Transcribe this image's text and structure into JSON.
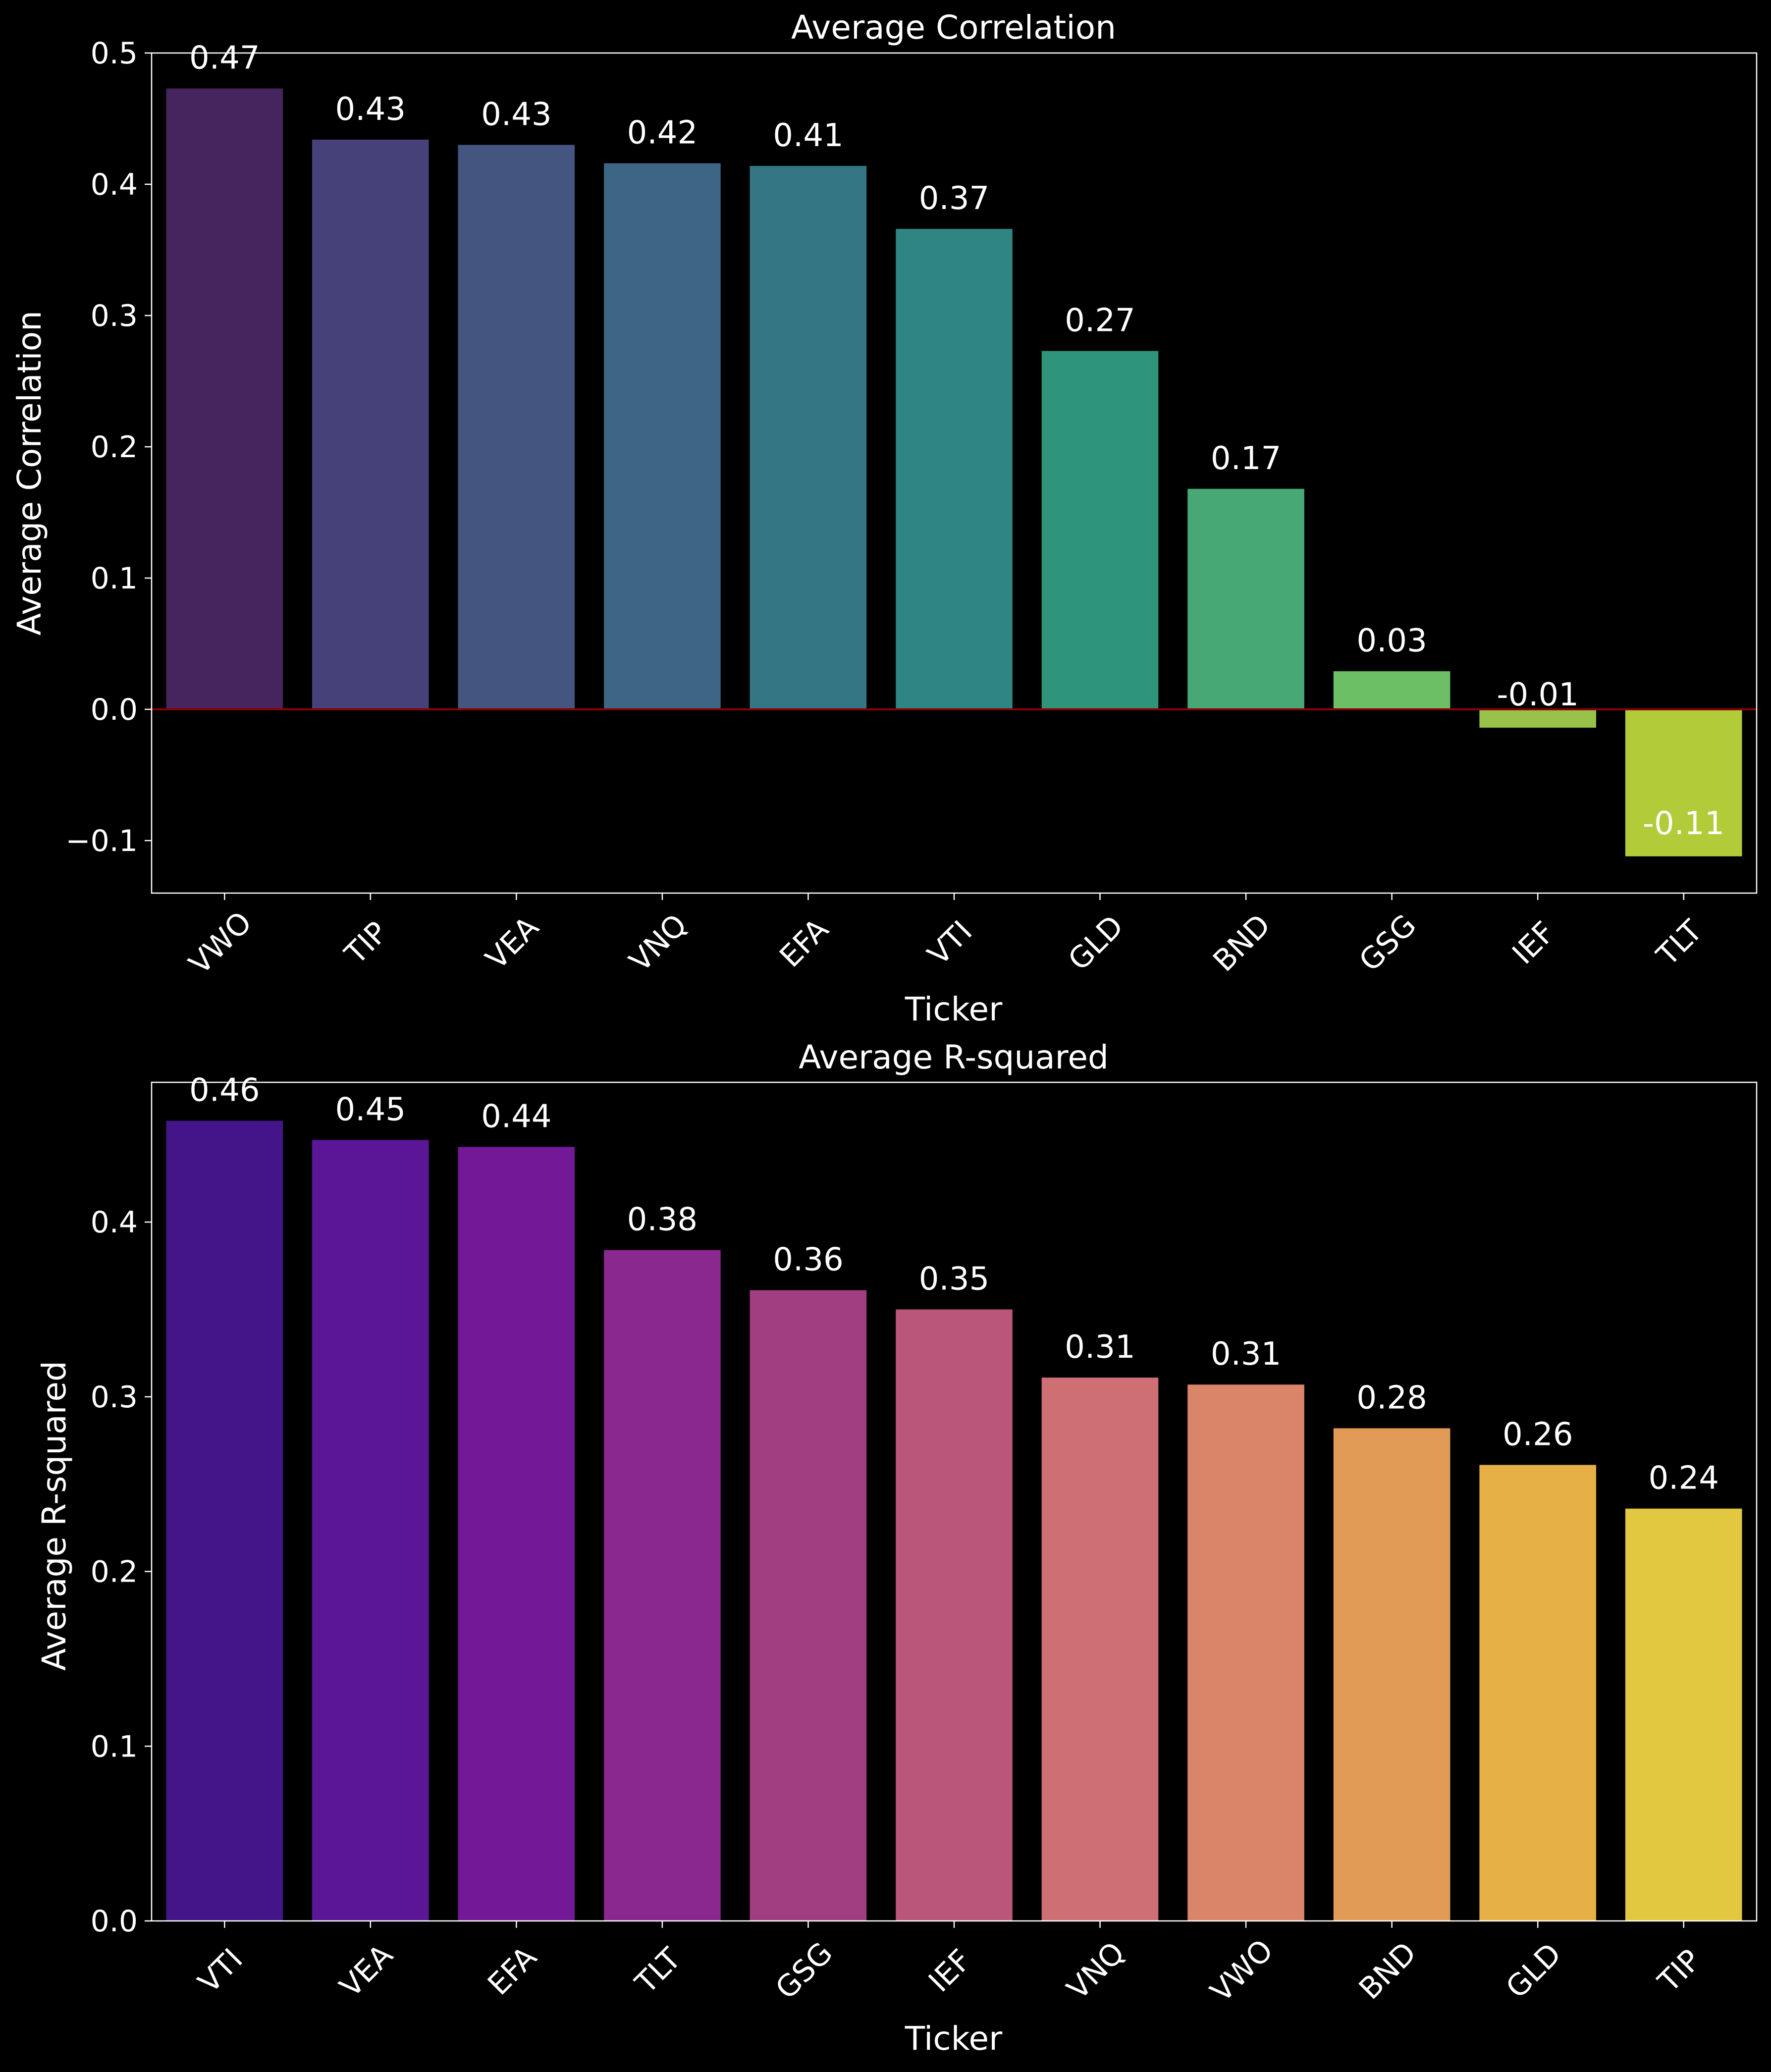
{
  "chart_data": [
    {
      "type": "bar",
      "title": "Average Correlation",
      "xlabel": "Ticker",
      "ylabel": "Average Correlation",
      "categories": [
        "VWO",
        "TIP",
        "VEA",
        "VNQ",
        "EFA",
        "VTI",
        "GLD",
        "BND",
        "GSG",
        "IEF",
        "TLT"
      ],
      "values": [
        0.473,
        0.434,
        0.43,
        0.416,
        0.414,
        0.366,
        0.273,
        0.168,
        0.029,
        -0.014,
        -0.112
      ],
      "value_labels": [
        "0.47",
        "0.43",
        "0.43",
        "0.42",
        "0.41",
        "0.37",
        "0.27",
        "0.17",
        "0.03",
        "-0.01",
        "-0.11"
      ],
      "colors": [
        "#46245E",
        "#47417A",
        "#44557F",
        "#3C6683",
        "#347683",
        "#2E8581",
        "#2F957A",
        "#47A775",
        "#6CBF64",
        "#99C24A",
        "#B2CB39"
      ],
      "ylim": [
        -0.14,
        0.5
      ],
      "yticks": [
        -0.1,
        0.0,
        0.1,
        0.2,
        0.3,
        0.4,
        0.5
      ],
      "ytick_labels": [
        "−0.1",
        "0.0",
        "0.1",
        "0.2",
        "0.3",
        "0.4",
        "0.5"
      ],
      "reference_line": {
        "y": 0,
        "color": "#8B0000"
      },
      "grid": false,
      "legend": "none"
    },
    {
      "type": "bar",
      "title": "Average R-squared",
      "xlabel": "Ticker",
      "ylabel": "Average R-squared",
      "categories": [
        "VTI",
        "VEA",
        "EFA",
        "TLT",
        "GSG",
        "IEF",
        "VNQ",
        "VWO",
        "BND",
        "GLD",
        "TIP"
      ],
      "values": [
        0.458,
        0.447,
        0.443,
        0.384,
        0.361,
        0.35,
        0.311,
        0.307,
        0.282,
        0.261,
        0.236
      ],
      "value_labels": [
        "0.46",
        "0.45",
        "0.44",
        "0.38",
        "0.36",
        "0.35",
        "0.31",
        "0.31",
        "0.28",
        "0.26",
        "0.24"
      ],
      "colors": [
        "#431588",
        "#5A1696",
        "#731997",
        "#8A2890",
        "#A13E82",
        "#BA5679",
        "#CE6F74",
        "#DA8469",
        "#E29A57",
        "#E6B047",
        "#E1C840"
      ],
      "ylim": [
        0,
        0.48
      ],
      "yticks": [
        0.0,
        0.1,
        0.2,
        0.3,
        0.4
      ],
      "ytick_labels": [
        "0.0",
        "0.1",
        "0.2",
        "0.3",
        "0.4"
      ],
      "grid": false,
      "legend": "none"
    }
  ]
}
